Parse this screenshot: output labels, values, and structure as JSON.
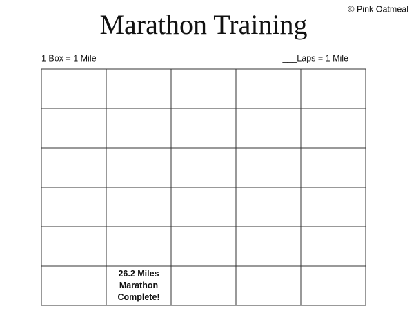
{
  "header": {
    "title": "Marathon Training",
    "copyright": "© Pink Oatmeal",
    "left_note": "1 Box = 1 Mile",
    "right_note": "___Laps = 1 Mile"
  },
  "table": {
    "rows": [
      [
        null,
        null,
        null,
        null,
        null
      ],
      [
        null,
        null,
        null,
        null,
        null
      ],
      [
        null,
        null,
        null,
        null,
        null
      ],
      [
        null,
        null,
        null,
        null,
        null
      ],
      [
        null,
        null,
        null,
        null,
        null
      ],
      [
        null,
        [
          "26.2 Miles",
          "Marathon",
          "Complete!"
        ],
        null,
        null,
        null
      ]
    ]
  }
}
